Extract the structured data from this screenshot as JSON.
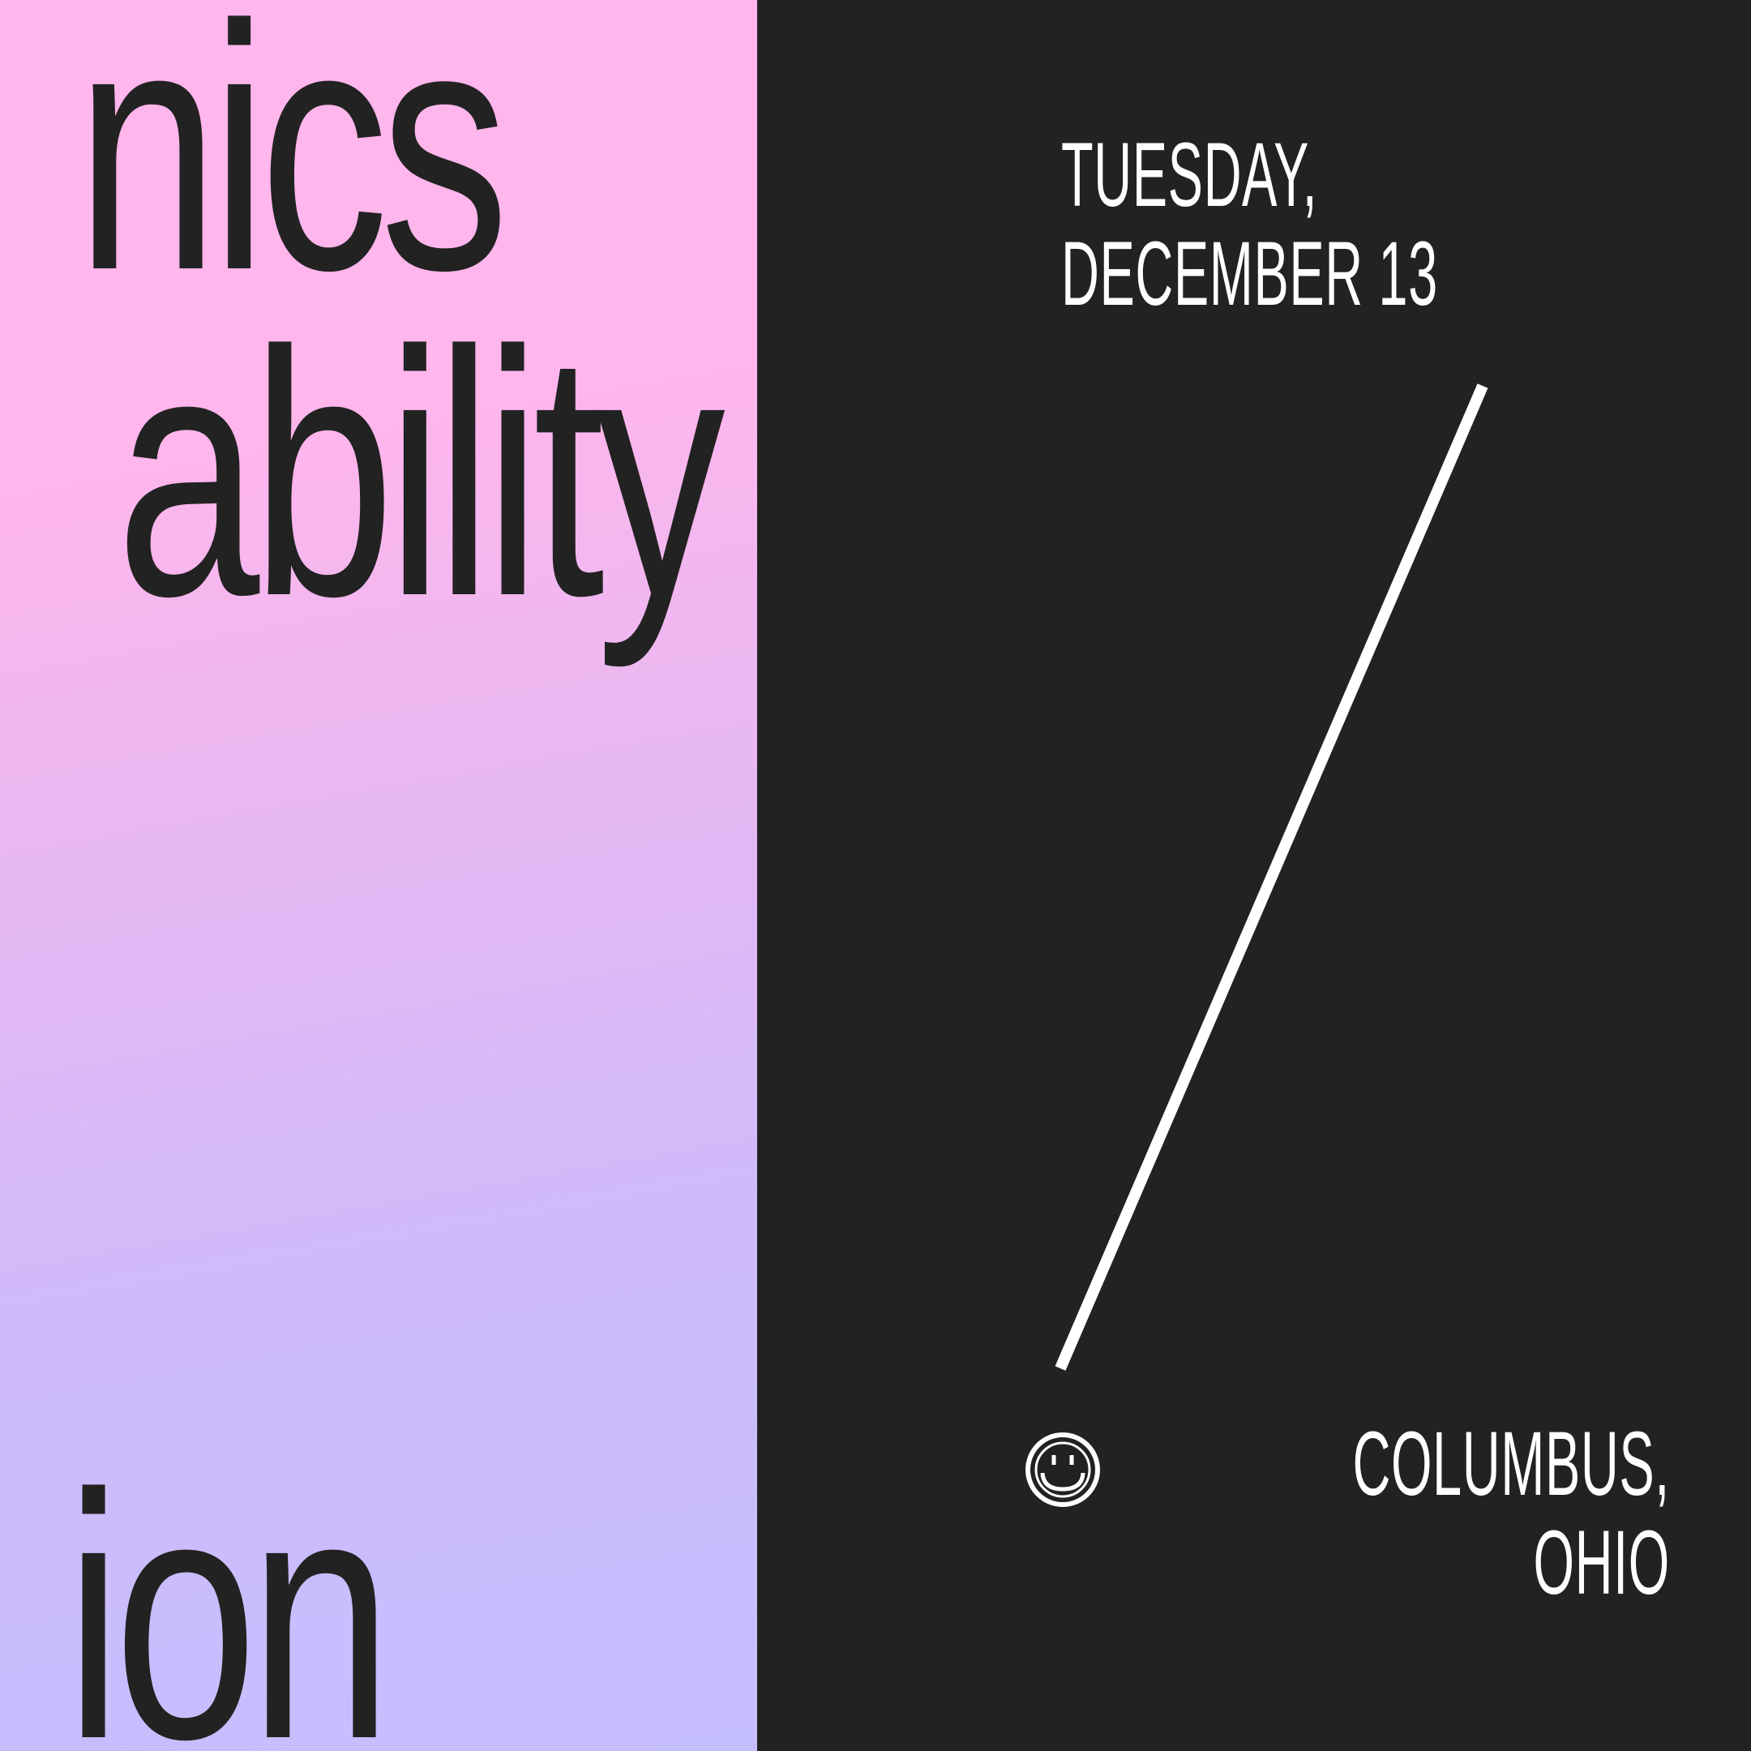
{
  "left_words": [
    "nics",
    "ability",
    "y",
    "ion"
  ],
  "date": {
    "line1": "TUESDAY,",
    "line2": "DECEMBER 13"
  },
  "location": {
    "line1": "COLUMBUS,",
    "line2": "OHIO"
  },
  "icons": {
    "divider": "slash-icon",
    "location_mark": "smiley-icon"
  },
  "colors": {
    "dark": "#222222",
    "pink": "#ffb6ec",
    "lavender": "#c5beff",
    "white": "#ffffff"
  }
}
